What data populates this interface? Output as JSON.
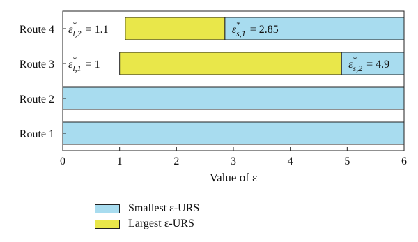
{
  "chart_data": {
    "type": "bar",
    "orientation": "horizontal",
    "categories": [
      "Route 1",
      "Route 2",
      "Route 3",
      "Route 4"
    ],
    "series": [
      {
        "name": "Smallest ε-URS",
        "color": "#a8dcef",
        "ranges": [
          [
            0,
            6
          ],
          [
            0,
            6
          ],
          [
            4.9,
            6
          ],
          [
            2.85,
            6
          ]
        ]
      },
      {
        "name": "Largest ε-URS",
        "color": "#e9e74a",
        "ranges": [
          null,
          null,
          [
            1,
            4.9
          ],
          [
            1.1,
            2.85
          ]
        ]
      }
    ],
    "annotations": [
      {
        "category": "Route 3",
        "text": "ε*l,1 = 1",
        "base": "ε",
        "sub": "l,1",
        "sup": "*",
        "value": "= 1",
        "position": "left"
      },
      {
        "category": "Route 3",
        "text": "ε*s,2 = 4.9",
        "base": "ε",
        "sub": "s,2",
        "sup": "*",
        "value": "= 4.9",
        "position": "inside-right"
      },
      {
        "category": "Route 4",
        "text": "ε*l,2 = 1.1",
        "base": "ε",
        "sub": "l,2",
        "sup": "*",
        "value": "= 1.1",
        "position": "left"
      },
      {
        "category": "Route 4",
        "text": "ε*s,1 = 2.85",
        "base": "ε",
        "sub": "s,1",
        "sup": "*",
        "value": "= 2.85",
        "position": "inside-right"
      }
    ],
    "xlabel": "Value of ε",
    "xlim": [
      0,
      6
    ],
    "xticks": [
      0,
      1,
      2,
      3,
      4,
      5,
      6
    ],
    "grid": false,
    "legend_position": "bottom-left"
  }
}
